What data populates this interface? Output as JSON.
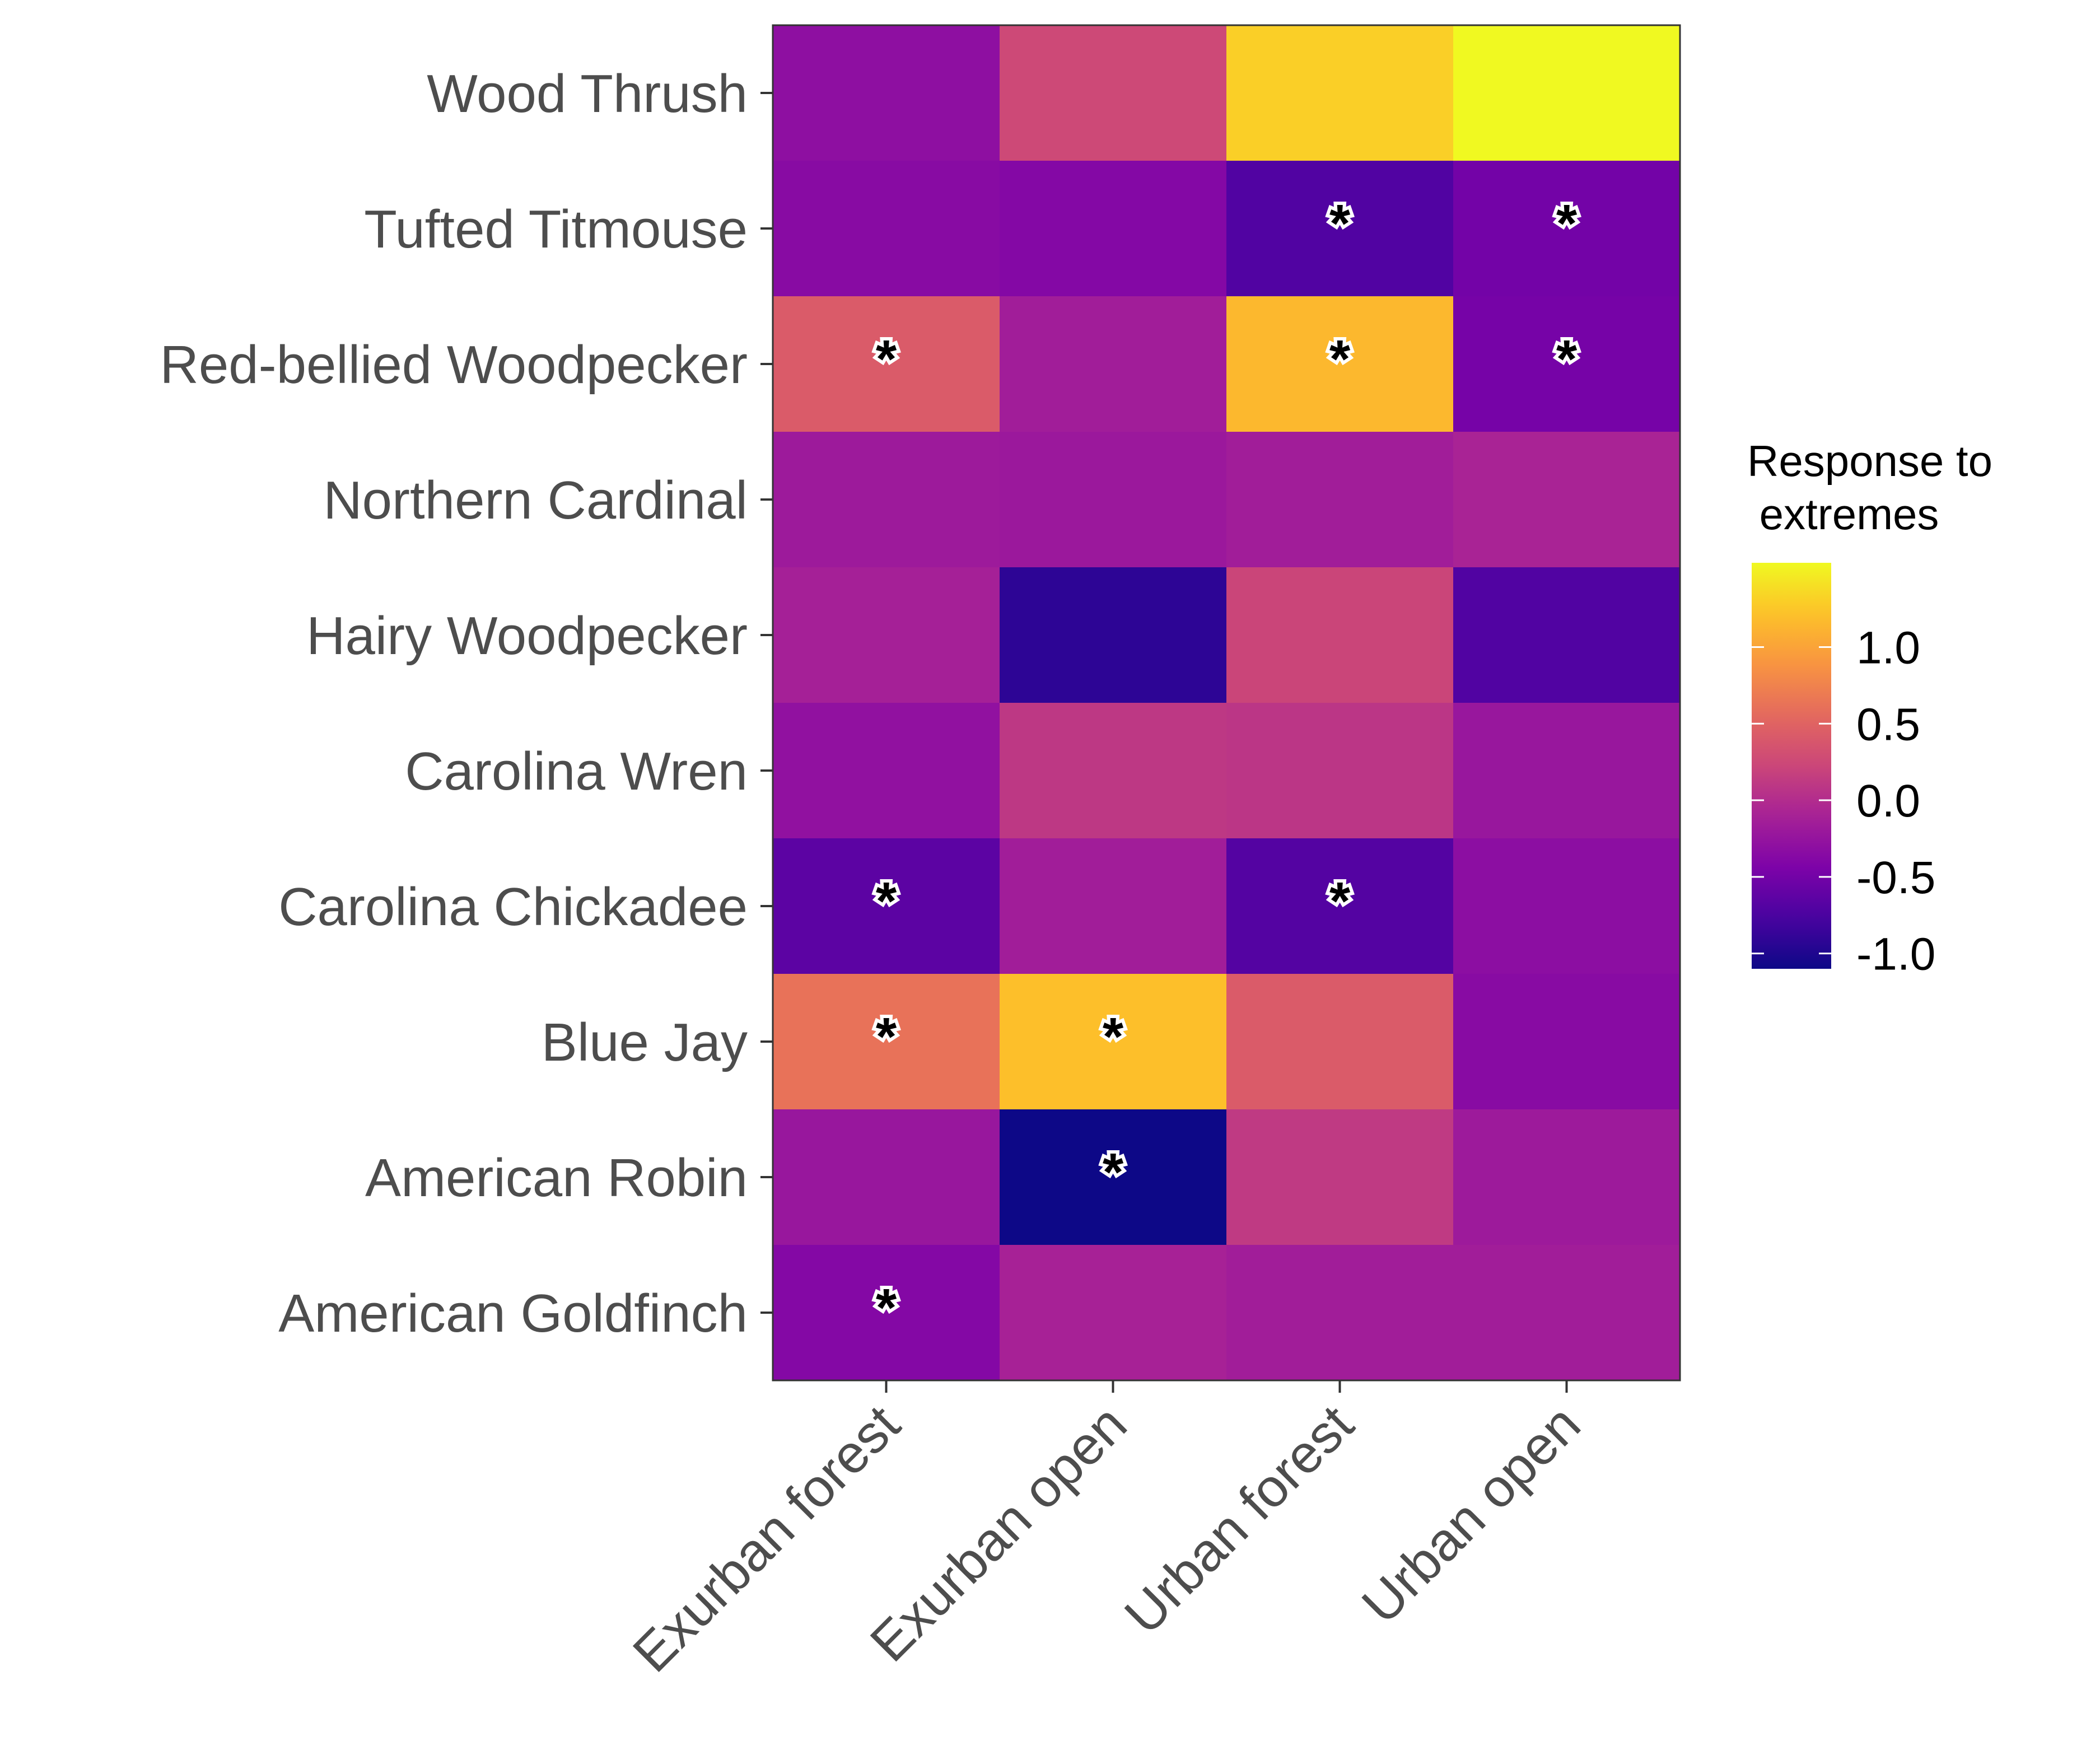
{
  "chart_data": {
    "type": "heatmap",
    "x_categories": [
      "Exurban forest",
      "Exurban open",
      "Urban forest",
      "Urban open"
    ],
    "y_categories": [
      "Wood Thrush",
      "Tufted Titmouse",
      "Red-bellied Woodpecker",
      "Northern Cardinal",
      "Hairy Woodpecker",
      "Carolina Wren",
      "Carolina Chickadee",
      "Blue Jay",
      "American Robin",
      "American Goldfinch"
    ],
    "values": [
      [
        -0.3,
        0.25,
        1.3,
        1.55
      ],
      [
        -0.35,
        -0.38,
        -0.72,
        -0.5
      ],
      [
        0.42,
        -0.15,
        1.15,
        -0.48
      ],
      [
        -0.18,
        -0.2,
        -0.15,
        -0.08
      ],
      [
        -0.12,
        -0.92,
        0.22,
        -0.72
      ],
      [
        -0.28,
        0.1,
        0.08,
        -0.22
      ],
      [
        -0.65,
        -0.15,
        -0.7,
        -0.32
      ],
      [
        0.62,
        1.2,
        0.42,
        -0.35
      ],
      [
        -0.22,
        -1.1,
        0.12,
        -0.18
      ],
      [
        -0.38,
        -0.1,
        -0.15,
        -0.15
      ]
    ],
    "significant": [
      [
        false,
        false,
        false,
        false
      ],
      [
        false,
        false,
        true,
        true
      ],
      [
        true,
        false,
        true,
        true
      ],
      [
        false,
        false,
        false,
        false
      ],
      [
        false,
        false,
        false,
        false
      ],
      [
        false,
        false,
        false,
        false
      ],
      [
        true,
        false,
        true,
        false
      ],
      [
        true,
        true,
        false,
        false
      ],
      [
        false,
        true,
        false,
        false
      ],
      [
        true,
        false,
        false,
        false
      ]
    ],
    "significance_marker": "*",
    "color_scale": "plasma",
    "value_range": [
      -1.1,
      1.55
    ],
    "legend": {
      "title_lines": [
        "Response to",
        " extremes"
      ],
      "ticks": [
        1.0,
        0.5,
        0.0,
        -0.5,
        -1.0
      ],
      "tick_labels": [
        "1.0",
        "0.5",
        "0.0",
        "-0.5",
        "-1.0"
      ],
      "position": "right"
    },
    "title": "",
    "xlabel": "",
    "ylabel": ""
  }
}
